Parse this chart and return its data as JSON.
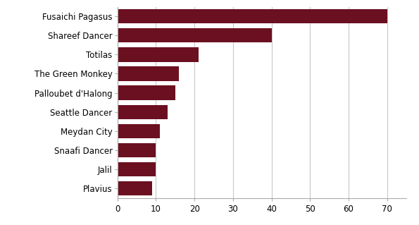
{
  "categories": [
    "Plavius",
    "Jalil",
    "Snaafi Dancer",
    "Meydan City",
    "Seattle Dancer",
    "Palloubet d'Halong",
    "The Green Monkey",
    "Totilas",
    "Shareef Dancer",
    "Fusaichi Pagasus"
  ],
  "values": [
    9,
    10,
    10,
    11,
    13,
    15,
    16,
    21,
    40,
    70
  ],
  "bar_color": "#6b1020",
  "background_color": "#ffffff",
  "xlim": [
    0,
    75
  ],
  "xticks": [
    0,
    10,
    20,
    30,
    40,
    50,
    60,
    70
  ],
  "grid_color": "#c8c8c8",
  "bar_height": 0.75,
  "label_fontsize": 8.5,
  "tick_fontsize": 8.5,
  "spine_color": "#aaaaaa"
}
